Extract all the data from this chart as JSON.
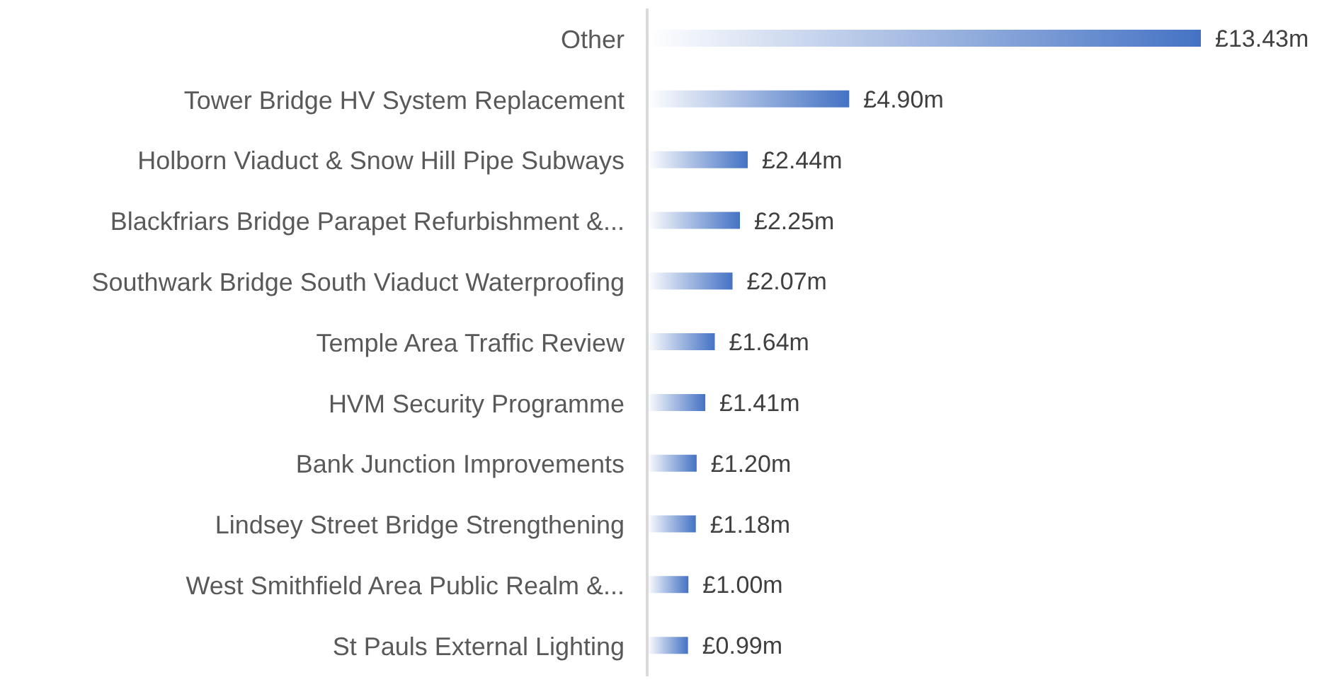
{
  "chart_data": {
    "type": "bar",
    "orientation": "horizontal",
    "categories": [
      "Other",
      "Tower Bridge HV System Replacement",
      "Holborn Viaduct & Snow Hill Pipe Subways",
      "Blackfriars Bridge Parapet Refurbishment &...",
      "Southwark Bridge South Viaduct Waterproofing",
      "Temple Area Traffic Review",
      "HVM Security Programme",
      "Bank Junction Improvements",
      "Lindsey Street Bridge Strengthening",
      "West Smithfield Area Public Realm &...",
      "St Pauls External Lighting"
    ],
    "values": [
      13.43,
      4.9,
      2.44,
      2.25,
      2.07,
      1.64,
      1.41,
      1.2,
      1.18,
      1.0,
      0.99
    ],
    "value_labels": [
      "£13.43m",
      "£4.90m",
      "£2.44m",
      "£2.25m",
      "£2.07m",
      "£1.64m",
      "£1.41m",
      "£1.20m",
      "£1.18m",
      "£1.00m",
      "£0.99m"
    ],
    "color": "#4472c4",
    "grid": false,
    "legend": false
  }
}
